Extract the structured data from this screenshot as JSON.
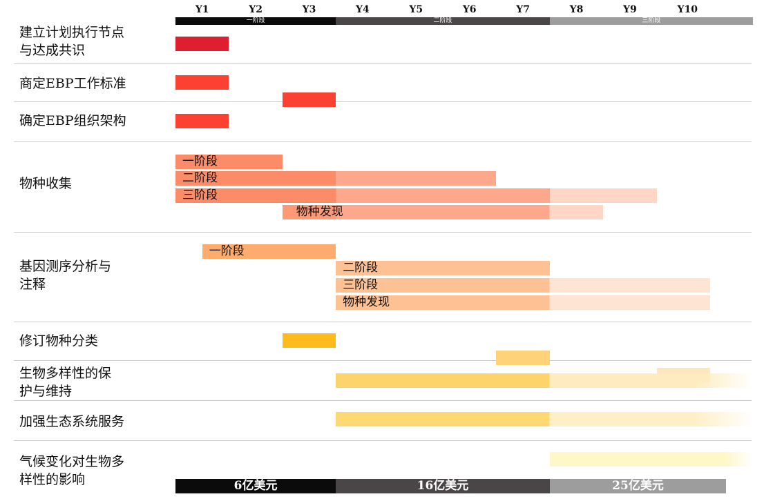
{
  "chart_data": {
    "type": "gantt",
    "years": [
      "Y1",
      "Y2",
      "Y3",
      "Y4",
      "Y5",
      "Y6",
      "Y7",
      "Y8",
      "Y9",
      "Y10"
    ],
    "phases": [
      {
        "label": "一阶段",
        "start": 0,
        "end": 3,
        "color": "#0b0b0b"
      },
      {
        "label": "二阶段",
        "start": 3,
        "end": 7,
        "color": "#4a4546"
      },
      {
        "label": "三阶段",
        "start": 7,
        "end": 10.8,
        "color": "#9d9d9d"
      }
    ],
    "budgets": [
      {
        "label": "6亿美元",
        "start": 0,
        "end": 3,
        "color": "#0b0b0b"
      },
      {
        "label": "16亿美元",
        "start": 3,
        "end": 7,
        "color": "#4a4546"
      },
      {
        "label": "25亿美元",
        "start": 7,
        "end": 10.3,
        "color": "#9d9d9d"
      }
    ],
    "rows": [
      {
        "label": "建立计划执行节点\n与达成共识",
        "bars": [
          {
            "start": 0,
            "end": 1,
            "color": "#de1f30",
            "label": ""
          }
        ]
      },
      {
        "label": "商定EBP工作标准",
        "bars": [
          {
            "start": 0,
            "end": 1,
            "color": "#fc4133",
            "label": ""
          },
          {
            "start": 2,
            "end": 3,
            "color": "#fc4133",
            "label": ""
          }
        ]
      },
      {
        "label": "确定EBP组织架构",
        "bars": [
          {
            "start": 0,
            "end": 1,
            "color": "#fc4133",
            "label": ""
          }
        ]
      },
      {
        "label": "物种收集",
        "bars": [
          {
            "start": 0,
            "end": 2,
            "color": "#fc8c68",
            "label": "一阶段",
            "segments": []
          },
          {
            "start": 0,
            "end": 6,
            "color": "#fc8c68",
            "label": "二阶段",
            "segments": [
              {
                "from": 3,
                "color": "#fda88d"
              }
            ]
          },
          {
            "start": 0,
            "end": 9,
            "color": "#fc8c68",
            "label": "三阶段",
            "segments": [
              {
                "from": 3,
                "color": "#fda88d"
              },
              {
                "from": 7,
                "color": "#fed6c6"
              }
            ]
          },
          {
            "start": 2,
            "end": 8,
            "color": "#fc9a78",
            "label": "物种发现",
            "segments": [
              {
                "from": 3,
                "color": "#fda88d"
              },
              {
                "from": 7,
                "color": "#fed6c6"
              }
            ]
          }
        ]
      },
      {
        "label": "基因测序分析与\n注释",
        "bars": [
          {
            "start": 0.5,
            "end": 3,
            "color": "#fdac6e",
            "label": "一阶段",
            "segments": []
          },
          {
            "start": 3,
            "end": 7,
            "color": "#fdc194",
            "label": "二阶段",
            "segments": []
          },
          {
            "start": 3,
            "end": 10,
            "color": "#fdc194",
            "label": "三阶段",
            "segments": [
              {
                "from": 7,
                "color": "#fee4d2"
              }
            ]
          },
          {
            "start": 3,
            "end": 10,
            "color": "#fdc194",
            "label": "物种发现",
            "segments": [
              {
                "from": 7,
                "color": "#fee4d2"
              }
            ]
          }
        ]
      },
      {
        "label": "修订物种分类",
        "bars": [
          {
            "start": 2,
            "end": 3,
            "color": "#fdbb1c",
            "label": ""
          },
          {
            "start": 6,
            "end": 7,
            "color": "#fdd278",
            "label": ""
          },
          {
            "start": 9,
            "end": 10,
            "color": "#fee6bd",
            "label": ""
          }
        ]
      },
      {
        "label": "生物多样性的保\n护与维持",
        "bars": [
          {
            "start": 3,
            "end": 10.8,
            "color": "#fdd46c",
            "label": "",
            "segments": [
              {
                "from": 7,
                "color": "#feecc0"
              }
            ],
            "fade": true
          }
        ]
      },
      {
        "label": "加强生态系统服务",
        "bars": [
          {
            "start": 3,
            "end": 10.8,
            "color": "#fdd873",
            "label": "",
            "segments": [
              {
                "from": 7,
                "color": "#feefc6"
              }
            ],
            "fade": true
          }
        ]
      },
      {
        "label": "气候变化对生物多\n样性的影响",
        "bars": [
          {
            "start": 7,
            "end": 10.8,
            "color": "#fef7c8",
            "label": "",
            "segments": [],
            "fade": true
          }
        ]
      }
    ]
  }
}
